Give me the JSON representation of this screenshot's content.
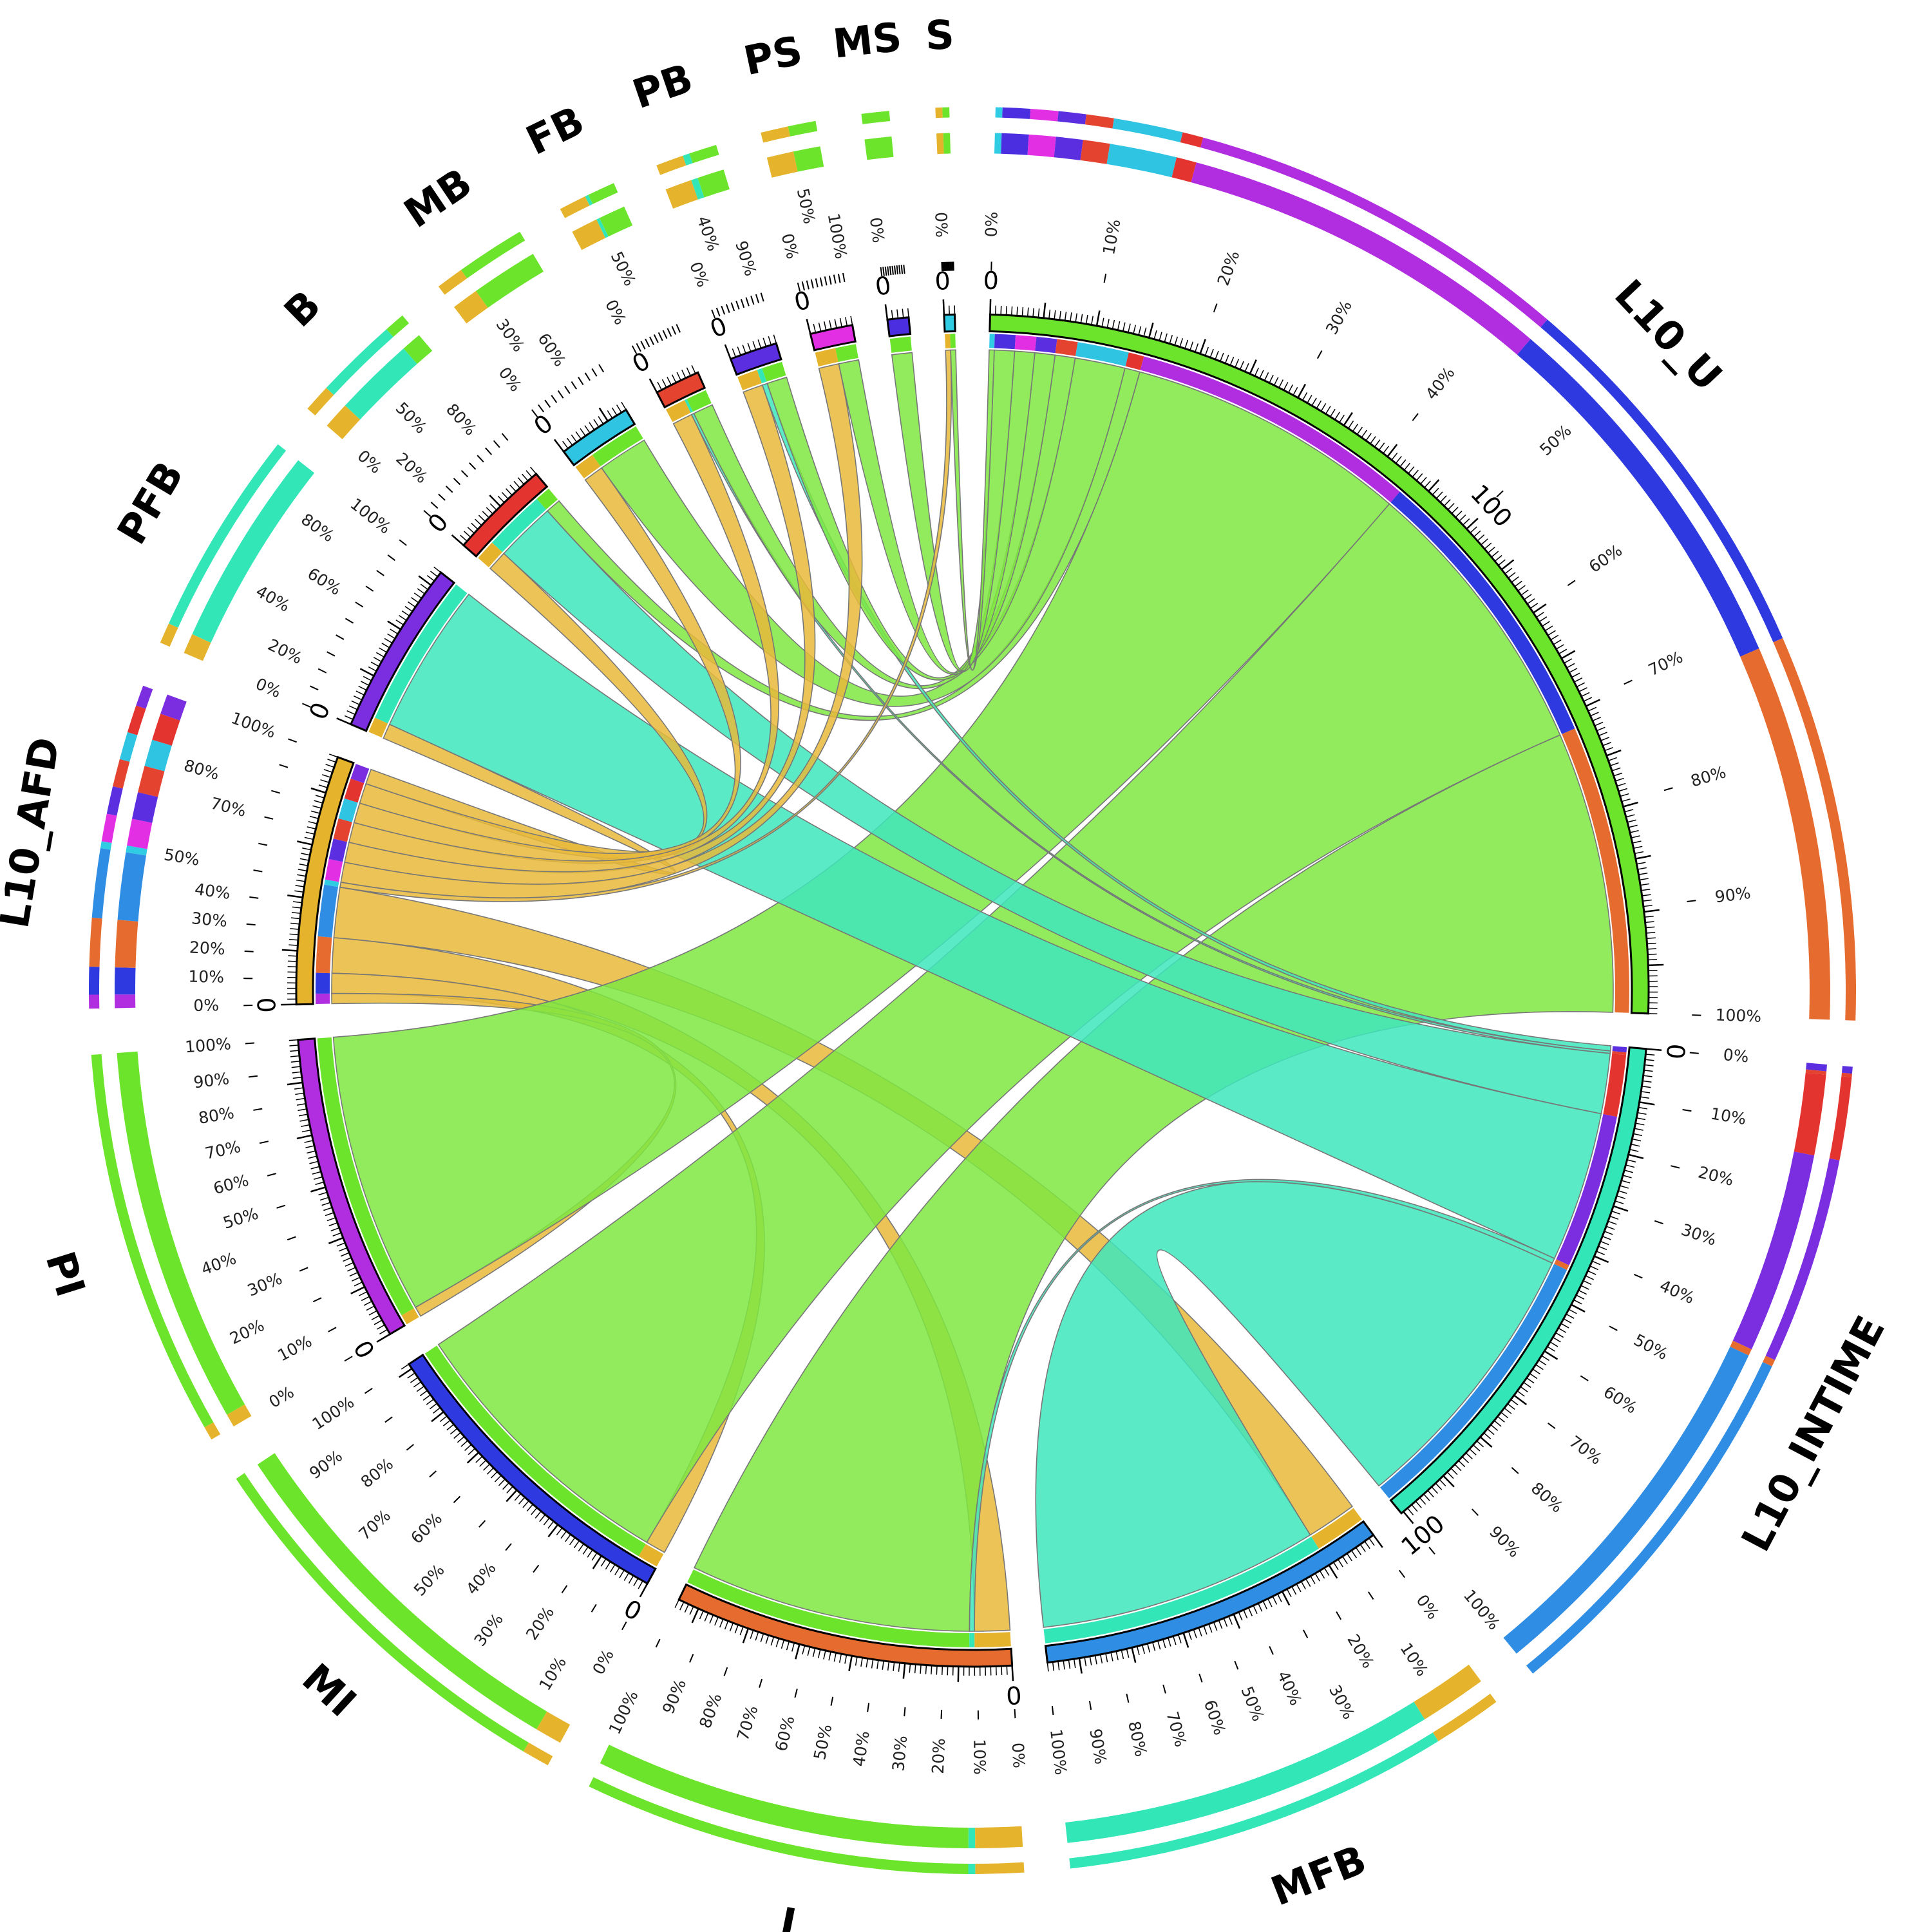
{
  "chart_data": {
    "type": "chord",
    "title": "",
    "sectors": [
      {
        "name": "L10_U",
        "color": "#6ce42c"
      },
      {
        "name": "L10_INTIME",
        "color": "#33e6b8"
      },
      {
        "name": "MFB",
        "color": "#2f8de4"
      },
      {
        "name": "I",
        "color": "#e66b2f"
      },
      {
        "name": "MI",
        "color": "#2e3ae0"
      },
      {
        "name": "PI",
        "color": "#b02ee0"
      },
      {
        "name": "L10_AFD",
        "color": "#e6b42c"
      },
      {
        "name": "PFB",
        "color": "#7a2ee0"
      },
      {
        "name": "B",
        "color": "#e3342f"
      },
      {
        "name": "MB",
        "color": "#30c4e3"
      },
      {
        "name": "FB",
        "color": "#e3432f"
      },
      {
        "name": "PB",
        "color": "#5b2ee0"
      },
      {
        "name": "PS",
        "color": "#e32fe3"
      },
      {
        "name": "MS",
        "color": "#4b2ee0"
      },
      {
        "name": "S",
        "color": "#30cce3"
      }
    ],
    "links": [
      {
        "source": "MFB",
        "target": "L10_AFD",
        "value": 10
      },
      {
        "source": "MFB",
        "target": "L10_INTIME",
        "value": 56
      },
      {
        "source": "I",
        "target": "L10_AFD",
        "value": 7
      },
      {
        "source": "I",
        "target": "L10_INTIME",
        "value": 1
      },
      {
        "source": "I",
        "target": "L10_U",
        "value": 56
      },
      {
        "source": "MI",
        "target": "L10_AFD",
        "value": 4
      },
      {
        "source": "MI",
        "target": "L10_U",
        "value": 57
      },
      {
        "source": "PI",
        "target": "L10_AFD",
        "value": 2
      },
      {
        "source": "PI",
        "target": "L10_U",
        "value": 56
      },
      {
        "source": "PFB",
        "target": "L10_AFD",
        "value": 3
      },
      {
        "source": "PFB",
        "target": "L10_INTIME",
        "value": 30
      },
      {
        "source": "B",
        "target": "L10_AFD",
        "value": 4
      },
      {
        "source": "B",
        "target": "L10_INTIME",
        "value": 12
      },
      {
        "source": "B",
        "target": "L10_U",
        "value": 3
      },
      {
        "source": "MB",
        "target": "L10_AFD",
        "value": 4
      },
      {
        "source": "MB",
        "target": "L10_U",
        "value": 10
      },
      {
        "source": "FB",
        "target": "L10_AFD",
        "value": 4
      },
      {
        "source": "FB",
        "target": "L10_INTIME",
        "value": 0.5
      },
      {
        "source": "FB",
        "target": "L10_U",
        "value": 4
      },
      {
        "source": "PB",
        "target": "L10_AFD",
        "value": 4
      },
      {
        "source": "PB",
        "target": "L10_INTIME",
        "value": 1
      },
      {
        "source": "PB",
        "target": "L10_U",
        "value": 4
      },
      {
        "source": "PS",
        "target": "L10_AFD",
        "value": 4
      },
      {
        "source": "PS",
        "target": "L10_U",
        "value": 4
      },
      {
        "source": "MS",
        "target": "L10_U",
        "value": 4
      },
      {
        "source": "S",
        "target": "L10_AFD",
        "value": 1
      },
      {
        "source": "S",
        "target": "L10_U",
        "value": 1
      }
    ],
    "major_tick_step": 100,
    "percent_ticks": [
      "0%",
      "10%",
      "20%",
      "30%",
      "40%",
      "50%",
      "60%",
      "70%",
      "80%",
      "90%",
      "100%"
    ],
    "legend": "none",
    "grid": false
  }
}
